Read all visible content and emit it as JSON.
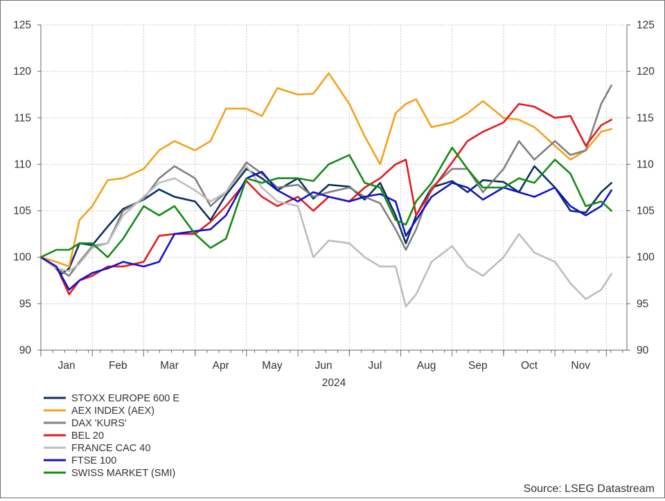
{
  "chart_data": {
    "type": "line",
    "xlabel": "2024",
    "months": [
      "Jan",
      "Feb",
      "Mar",
      "Apr",
      "May",
      "Jun",
      "Jul",
      "Aug",
      "Sep",
      "Oct",
      "Nov"
    ],
    "ylim": [
      90,
      125
    ],
    "yticks": [
      90,
      95,
      100,
      105,
      110,
      115,
      120,
      125
    ],
    "grid": true,
    "legend_position": "bottom-left",
    "series": [
      {
        "name": "STOXX EUROPE 600 E",
        "color": "#0b2f5c",
        "x": [
          0,
          0.2,
          0.4,
          0.55,
          0.75,
          1,
          1.3,
          1.6,
          2,
          2.3,
          2.6,
          3,
          3.3,
          3.6,
          4,
          4.3,
          4.6,
          5,
          5.3,
          5.6,
          6,
          6.3,
          6.6,
          6.9,
          7.1,
          7.3,
          7.6,
          8,
          8.3,
          8.6,
          9,
          9.3,
          9.6,
          10,
          10.3,
          10.6,
          10.9,
          11.1
        ],
        "y": [
          100,
          99.3,
          98.2,
          98.8,
          101.5,
          101.3,
          103.3,
          105.2,
          106.2,
          107.3,
          106.5,
          106,
          104,
          106.7,
          109.5,
          108.5,
          107.2,
          108.5,
          106.3,
          107.8,
          107.6,
          106.2,
          108,
          104.5,
          101.5,
          104.5,
          107.5,
          108.2,
          107,
          108.3,
          108.1,
          107,
          109.8,
          107.5,
          105,
          104.8,
          107,
          108
        ]
      },
      {
        "name": "AEX INDEX (AEX)",
        "color": "#f4a11a",
        "x": [
          0,
          0.3,
          0.55,
          0.75,
          1,
          1.3,
          1.6,
          2,
          2.3,
          2.6,
          3,
          3.3,
          3.6,
          4,
          4.3,
          4.6,
          5,
          5.3,
          5.6,
          6,
          6.3,
          6.6,
          6.9,
          7.1,
          7.3,
          7.6,
          8,
          8.3,
          8.6,
          9,
          9.3,
          9.6,
          10,
          10.3,
          10.6,
          10.9,
          11.1
        ],
        "y": [
          100,
          99.5,
          99,
          104,
          105.5,
          108.3,
          108.5,
          109.5,
          111.5,
          112.5,
          111.5,
          112.5,
          116,
          116,
          115.2,
          118.2,
          117.5,
          117.6,
          119.8,
          116.5,
          113,
          110,
          115.5,
          116.5,
          117,
          114,
          114.5,
          115.5,
          116.8,
          115,
          114.8,
          114,
          112,
          110.5,
          111.5,
          113.5,
          113.8
        ]
      },
      {
        "name": "DAX 'KURS'",
        "color": "#7f7f7f",
        "x": [
          0,
          0.3,
          0.55,
          0.75,
          1,
          1.3,
          1.6,
          2,
          2.3,
          2.6,
          3,
          3.3,
          3.6,
          4,
          4.3,
          4.6,
          5,
          5.3,
          5.6,
          6,
          6.3,
          6.6,
          6.9,
          7.1,
          7.3,
          7.6,
          8,
          8.3,
          8.6,
          9,
          9.3,
          9.6,
          10,
          10.3,
          10.6,
          10.9,
          11.1
        ],
        "y": [
          100,
          98.8,
          98,
          99.5,
          101.2,
          101.5,
          105,
          106.3,
          108.5,
          109.8,
          108.5,
          105.5,
          107,
          110.2,
          109,
          107.5,
          107.8,
          106.5,
          107,
          107.5,
          106.5,
          105.8,
          103,
          100.8,
          103,
          107.5,
          109.5,
          109.5,
          107,
          109.5,
          112.5,
          110.5,
          112.5,
          111,
          111.5,
          116.5,
          118.5
        ]
      },
      {
        "name": "BEL 20",
        "color": "#e31a1c",
        "x": [
          0,
          0.3,
          0.55,
          0.75,
          1,
          1.3,
          1.6,
          2,
          2.3,
          2.6,
          3,
          3.3,
          3.6,
          4,
          4.3,
          4.6,
          5,
          5.3,
          5.6,
          6,
          6.3,
          6.6,
          6.9,
          7.1,
          7.3,
          7.6,
          8,
          8.3,
          8.6,
          9,
          9.3,
          9.6,
          10,
          10.3,
          10.6,
          10.9,
          11.1
        ],
        "y": [
          100,
          99,
          96,
          97.5,
          98,
          99,
          99,
          99.5,
          102.3,
          102.5,
          102.5,
          103.8,
          105.5,
          108.2,
          106.5,
          105.5,
          106.5,
          105,
          106.5,
          106,
          107.5,
          108.5,
          110,
          110.5,
          104.5,
          107.2,
          110.2,
          112.5,
          113.5,
          114.5,
          116.5,
          116.2,
          115,
          115.2,
          112,
          114.2,
          114.8
        ]
      },
      {
        "name": "FRANCE CAC 40",
        "color": "#bdbdbd",
        "x": [
          0,
          0.3,
          0.55,
          0.75,
          1,
          1.3,
          1.6,
          2,
          2.3,
          2.6,
          3,
          3.3,
          3.6,
          4,
          4.3,
          4.6,
          5,
          5.3,
          5.6,
          6,
          6.3,
          6.6,
          6.9,
          7.1,
          7.3,
          7.6,
          8,
          8.3,
          8.6,
          9,
          9.3,
          9.6,
          10,
          10.3,
          10.6,
          10.9,
          11.1
        ],
        "y": [
          100,
          98.8,
          98.5,
          99.3,
          101,
          101.5,
          104.5,
          106.5,
          108,
          108.5,
          107.2,
          106,
          107,
          109.8,
          107.5,
          106,
          105.5,
          100,
          101.8,
          101.5,
          100,
          99,
          99,
          94.7,
          96,
          99.5,
          101.2,
          99,
          98,
          100,
          102.5,
          100.5,
          99.5,
          97.2,
          95.5,
          96.5,
          98.2
        ]
      },
      {
        "name": "FTSE 100",
        "color": "#1111cc",
        "x": [
          0,
          0.3,
          0.55,
          0.75,
          1,
          1.3,
          1.6,
          2,
          2.3,
          2.6,
          3,
          3.3,
          3.6,
          4,
          4.3,
          4.6,
          5,
          5.3,
          5.6,
          6,
          6.3,
          6.6,
          6.9,
          7.1,
          7.3,
          7.6,
          8,
          8.3,
          8.6,
          9,
          9.3,
          9.6,
          10,
          10.3,
          10.6,
          10.9,
          11.1
        ],
        "y": [
          100,
          99,
          96.5,
          97.5,
          98.3,
          98.8,
          99.5,
          99,
          99.5,
          102.5,
          102.8,
          103,
          104.5,
          108.5,
          109.2,
          107.2,
          106,
          107,
          106.5,
          106,
          106.5,
          106.8,
          106,
          102.3,
          104,
          106.5,
          108,
          107.5,
          106.2,
          107.5,
          107,
          106.5,
          107.5,
          105.5,
          104.5,
          105.5,
          107.2
        ]
      },
      {
        "name": "SWISS MARKET (SMI)",
        "color": "#138a13",
        "x": [
          0,
          0.3,
          0.55,
          0.75,
          1,
          1.3,
          1.6,
          2,
          2.3,
          2.6,
          3,
          3.3,
          3.6,
          4,
          4.3,
          4.6,
          5,
          5.3,
          5.6,
          6,
          6.3,
          6.6,
          6.9,
          7.1,
          7.3,
          7.6,
          8,
          8.3,
          8.6,
          9,
          9.3,
          9.6,
          10,
          10.3,
          10.6,
          10.9,
          11.1
        ],
        "y": [
          100,
          100.8,
          100.8,
          101.5,
          101.5,
          100,
          102,
          105.5,
          104.5,
          105.5,
          102.5,
          101,
          102,
          108.5,
          108,
          108.5,
          108.5,
          108.2,
          110,
          111,
          108,
          107.5,
          104,
          103.5,
          106,
          108,
          111.8,
          109.5,
          107.5,
          107.5,
          108.5,
          108,
          110.5,
          109,
          105.5,
          106,
          105
        ]
      }
    ]
  },
  "source_note": "Source: LSEG Datastream"
}
